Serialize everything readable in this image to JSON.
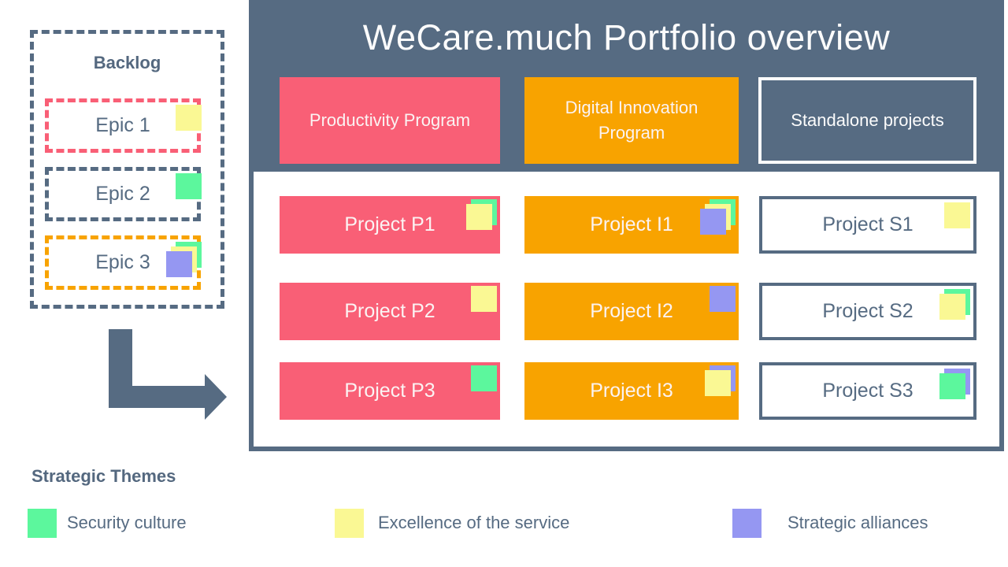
{
  "title": "WeCare.much Portfolio overview",
  "colors": {
    "slate": "#566B82",
    "pink": "#F95F76",
    "orange": "#F8A300",
    "panel_text": "#FCFCFC",
    "stickies": {
      "green": "#5CF79D",
      "yellow": "#FAF894",
      "purple": "#9597F2"
    }
  },
  "backlog": {
    "label": "Backlog",
    "epics": [
      {
        "label": "Epic 1",
        "border_color": "#F95F76",
        "stickies": [
          "yellow"
        ]
      },
      {
        "label": "Epic 2",
        "border_color": "#566B82",
        "stickies": [
          "green"
        ]
      },
      {
        "label": "Epic 3",
        "border_color": "#F8A300",
        "stickies": [
          "green",
          "yellow",
          "purple"
        ]
      }
    ]
  },
  "programs": [
    {
      "label": "Productivity Program",
      "style": "pink"
    },
    {
      "label": "Digital Innovation Program",
      "style": "orange"
    },
    {
      "label": "Standalone projects",
      "style": "outline"
    }
  ],
  "projects": [
    {
      "label": "Project P1",
      "stickies": [
        "green",
        "yellow"
      ]
    },
    {
      "label": "Project P2",
      "stickies": [
        "yellow"
      ]
    },
    {
      "label": "Project P3",
      "stickies": [
        "green"
      ]
    },
    {
      "label": "Project I1",
      "stickies": [
        "green",
        "yellow",
        "purple"
      ]
    },
    {
      "label": "Project I2",
      "stickies": [
        "purple"
      ]
    },
    {
      "label": "Project I3",
      "stickies": [
        "purple",
        "yellow"
      ]
    },
    {
      "label": "Project S1",
      "stickies": [
        "yellow"
      ]
    },
    {
      "label": "Project S2",
      "stickies": [
        "green",
        "yellow"
      ]
    },
    {
      "label": "Project S3",
      "stickies": [
        "purple",
        "green"
      ]
    }
  ],
  "legend": {
    "title": "Strategic Themes",
    "items": [
      {
        "label": "Security culture",
        "color": "green"
      },
      {
        "label": "Excellence of the service",
        "color": "yellow"
      },
      {
        "label": "Strategic alliances",
        "color": "purple"
      }
    ]
  }
}
